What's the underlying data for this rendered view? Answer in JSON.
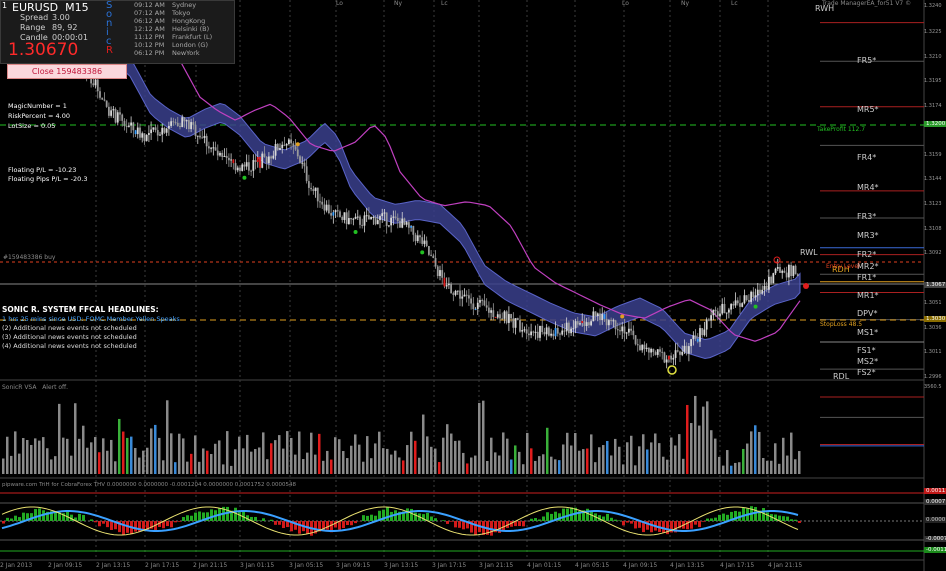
{
  "info": {
    "tab_label": "1",
    "symbol": "EURUSD",
    "timeframe": "M15",
    "stats": [
      {
        "label": "Spread",
        "value": "3.00"
      },
      {
        "label": "Range",
        "value": "89, 92"
      },
      {
        "label": "Candle",
        "value": "00:00:01"
      }
    ],
    "price": "1.30670",
    "sonic_letters": [
      "S",
      "o",
      "n",
      "i",
      "c",
      "R"
    ],
    "sessions": [
      {
        "time": "09:12 AM",
        "city": "Sydney"
      },
      {
        "time": "07:12 AM",
        "city": "Tokyo"
      },
      {
        "time": "06:12 AM",
        "city": "HongKong"
      },
      {
        "time": "12:12 AM",
        "city": "Helsinki  (B)"
      },
      {
        "time": "11:12 PM",
        "city": "Frankfurt  (L)"
      },
      {
        "time": "10:12 PM",
        "city": "London  (G)"
      },
      {
        "time": "06:12 PM",
        "city": "NewYork"
      }
    ]
  },
  "close_button": "Close 159483386",
  "params": [
    "MagicNumber = 1",
    "RiskPercent = 4.00",
    "LotSize = 0.05"
  ],
  "floating": [
    "Floating P/L = -10.23",
    "Floating Pips P/L = -20.3"
  ],
  "order_line": "#159483386 buy",
  "headlines": {
    "title": "SONIC R. SYSTEM  FFCAL HEADLINES:",
    "next": "1 hrs 25 mins since USD: FOMC Member Yellen Speaks",
    "items": [
      "(2)  Additional news events not scheduled",
      "(3)  Additional news events not scheduled",
      "(4)  Additional news events not scheduled"
    ]
  },
  "ea_label": "Trade ManagerEA_for51 V7 ©",
  "levels": [
    {
      "name": "RWH",
      "y": 1.3272
    },
    {
      "name": "FR5*",
      "y": 1.3252
    },
    {
      "name": "MR5*",
      "y": 1.32235
    },
    {
      "name": "FR4*",
      "y": 1.319
    },
    {
      "name": "MR4*",
      "y": 1.31615
    },
    {
      "name": "FR3*",
      "y": 1.3128
    },
    {
      "name": "MR3*",
      "y": 1.3108
    },
    {
      "name": "FR2*",
      "y": 1.3081
    },
    {
      "name": "MR2*",
      "y": 1.30665
    },
    {
      "name": "FR1*",
      "y": 1.3053
    },
    {
      "name": "MR1*",
      "y": 1.3033
    },
    {
      "name": "DPV*",
      "y": 1.30165
    },
    {
      "name": "MS1*",
      "y": 1.29965
    },
    {
      "name": "FS1*",
      "y": 1.2976
    },
    {
      "name": "MS2*",
      "y": 1.2961
    },
    {
      "name": "FS2*",
      "y": 1.2941
    },
    {
      "name": "RWL",
      "y": 1.3086
    },
    {
      "name": "RDL",
      "y": 1.294
    },
    {
      "name": "RDH",
      "y": 1.3061
    }
  ],
  "trade_lines": {
    "take_profit": "TakeProfit  112.7",
    "stop_loss": "StopLoss  48.5",
    "entry": "Entry Level"
  },
  "price_axis": [
    "1.3240",
    "1.3225",
    "1.3210",
    "1.3195",
    "1.3174",
    "1.3159",
    "1.3144",
    "1.3123",
    "1.3108",
    "1.3092",
    "1.3077",
    "1.3051",
    "1.3036",
    "1.3011",
    "1.2996"
  ],
  "price_tags": [
    {
      "text": "1.3200",
      "color": "#2b9b2b"
    },
    {
      "text": "1.3067",
      "color": "#444444"
    },
    {
      "text": "1.3030",
      "color": "#8a6d00"
    }
  ],
  "session_markers": [
    {
      "text": "Lo",
      "x": 338
    },
    {
      "text": "Ny",
      "x": 397
    },
    {
      "text": "Lc",
      "x": 443
    },
    {
      "text": "Lo",
      "x": 625
    },
    {
      "text": "Ny",
      "x": 683
    },
    {
      "text": "Lc",
      "x": 733
    }
  ],
  "vsa": {
    "title": "SonicR VSA",
    "alert": "Alert off.",
    "max": "3560.5"
  },
  "osc": {
    "title": "pipware.com TriH for CobraForex THV 0.0000000 0.0000000 -0.0001204 0.0000000 0.0001752 0.0000548",
    "tags": [
      "0.0011",
      "0.0007",
      "0.0000",
      "-0.0007",
      "-0.0011"
    ]
  },
  "dates": [
    "2 Jan 2013",
    "2 Jan 09:15",
    "2 Jan 13:15",
    "2 Jan 17:15",
    "2 Jan 21:15",
    "3 Jan 01:15",
    "3 Jan 05:15",
    "3 Jan 09:15",
    "3 Jan 13:15",
    "3 Jan 17:15",
    "3 Jan 21:15",
    "4 Jan 01:15",
    "4 Jan 05:15",
    "4 Jan 09:15",
    "4 Jan 13:15",
    "4 Jan 17:15",
    "4 Jan 21:15"
  ],
  "chart_data": {
    "type": "candlestick",
    "symbol": "EURUSD",
    "timeframe": "M15",
    "close_path": [
      {
        "t": 0,
        "p": 1.3255
      },
      {
        "t": 10,
        "p": 1.3245
      },
      {
        "t": 20,
        "p": 1.3232
      },
      {
        "t": 30,
        "p": 1.3225
      },
      {
        "t": 40,
        "p": 1.3215
      },
      {
        "t": 50,
        "p": 1.3185
      },
      {
        "t": 58,
        "p": 1.3175
      },
      {
        "t": 66,
        "p": 1.3168
      },
      {
        "t": 74,
        "p": 1.3175
      },
      {
        "t": 82,
        "p": 1.318
      },
      {
        "t": 90,
        "p": 1.317
      },
      {
        "t": 100,
        "p": 1.315
      },
      {
        "t": 110,
        "p": 1.3145
      },
      {
        "t": 120,
        "p": 1.3152
      },
      {
        "t": 128,
        "p": 1.3165
      },
      {
        "t": 134,
        "p": 1.3155
      },
      {
        "t": 140,
        "p": 1.313
      },
      {
        "t": 150,
        "p": 1.311
      },
      {
        "t": 160,
        "p": 1.3105
      },
      {
        "t": 170,
        "p": 1.3108
      },
      {
        "t": 180,
        "p": 1.3105
      },
      {
        "t": 190,
        "p": 1.309
      },
      {
        "t": 200,
        "p": 1.306
      },
      {
        "t": 210,
        "p": 1.3048
      },
      {
        "t": 220,
        "p": 1.304
      },
      {
        "t": 230,
        "p": 1.3032
      },
      {
        "t": 240,
        "p": 1.3025
      },
      {
        "t": 250,
        "p": 1.3022
      },
      {
        "t": 260,
        "p": 1.303
      },
      {
        "t": 270,
        "p": 1.3036
      },
      {
        "t": 280,
        "p": 1.3028
      },
      {
        "t": 290,
        "p": 1.301
      },
      {
        "t": 300,
        "p": 1.3005
      },
      {
        "t": 310,
        "p": 1.3012
      },
      {
        "t": 320,
        "p": 1.3035
      },
      {
        "t": 330,
        "p": 1.3045
      },
      {
        "t": 340,
        "p": 1.305
      },
      {
        "t": 350,
        "p": 1.307
      },
      {
        "t": 360,
        "p": 1.3067
      }
    ],
    "ylim": [
      1.299,
      1.3265
    ],
    "grid": false
  }
}
